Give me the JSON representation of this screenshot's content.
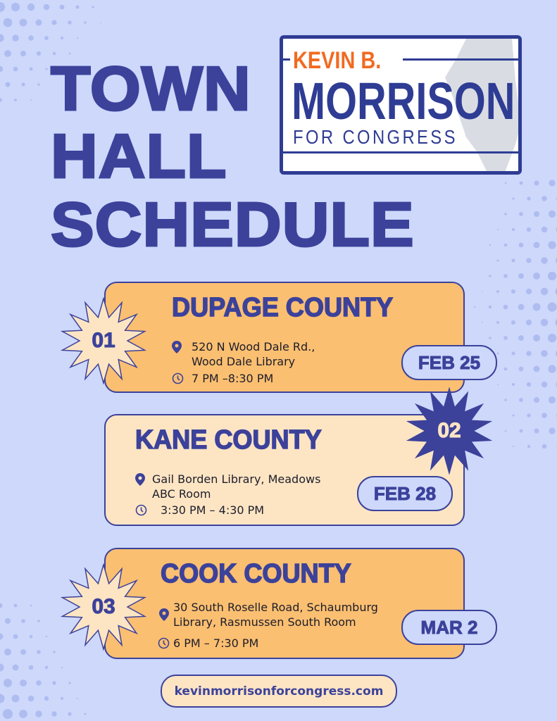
{
  "title_lines": [
    "TOWN",
    "HALL",
    "SCHEDULE"
  ],
  "logo": {
    "first": "KEVIN B.",
    "last": "MORRISON",
    "tagline": "FOR CONGRESS"
  },
  "colors": {
    "background": "#cdd8fb",
    "navy": "#3c429a",
    "orange_card": "#fbbf71",
    "light_card": "#fde5c4",
    "logo_orange": "#f26a21"
  },
  "events": [
    {
      "number": "01",
      "county": "DUPAGE COUNTY",
      "address_lines": [
        "520 N Wood Dale Rd.,",
        "Wood Dale Library"
      ],
      "time": "7 PM –8:30 PM",
      "date": "FEB 25"
    },
    {
      "number": "02",
      "county": "KANE COUNTY",
      "address_lines": [
        "Gail Borden Library, Meadows",
        "ABC Room"
      ],
      "time": "3:30 PM – 4:30 PM",
      "date": "FEB 28"
    },
    {
      "number": "03",
      "county": "COOK COUNTY",
      "address_lines": [
        "30 South Roselle Road, Schaumburg",
        "Library, Rasmussen South Room"
      ],
      "time": "6 PM – 7:30 PM",
      "date": "MAR 2"
    }
  ],
  "icons": {
    "location": "map-pin-icon",
    "time": "clock-icon"
  },
  "website": "kevinmorrisonforcongress.com"
}
